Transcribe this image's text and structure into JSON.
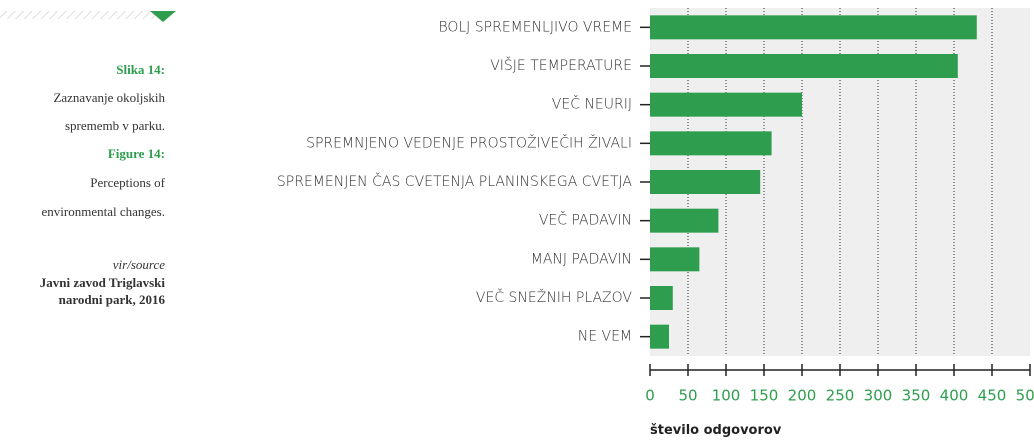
{
  "sidebar": {
    "figure_sl": "Slika 14:",
    "caption_sl": [
      "Zaznavanje okoljskih",
      "sprememb v parku."
    ],
    "figure_en": "Figure 14:",
    "caption_en": [
      "Perceptions of",
      "environmental changes."
    ],
    "source_label": "vir/source",
    "source": [
      "Javni zavod Triglavski",
      "narodni park, 2016"
    ]
  },
  "chart_data": {
    "type": "bar",
    "orientation": "horizontal",
    "categories": [
      "BOLJ SPREMENLJIVO VREME",
      "VIŠJE TEMPERATURE",
      "VEČ NEURIJ",
      "SPREMNJENO VEDENJE PROSTOŽIVEČIH ŽIVALI",
      "SPREMENJEN ČAS CVETENJA PLANINSKEGA CVETJA",
      "VEČ PADAVIN",
      "MANJ PADAVIN",
      "VEČ SNEŽNIH PLAZOV",
      "NE VEM"
    ],
    "values": [
      430,
      405,
      200,
      160,
      145,
      90,
      65,
      30,
      25
    ],
    "color": "#2e9e4e",
    "xlim": [
      0,
      500
    ],
    "xticks": [
      0,
      50,
      100,
      150,
      200,
      250,
      300,
      350,
      400,
      450,
      500
    ],
    "x_label": "število odgovorov",
    "grid": true
  }
}
